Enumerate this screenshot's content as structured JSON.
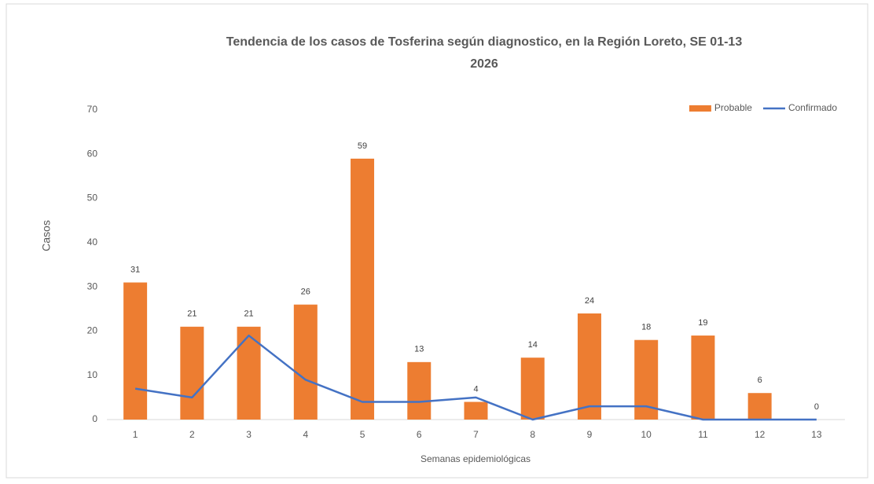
{
  "chart_data": {
    "type": "bar_line",
    "title": "Tendencia de los casos de Tosferina según diagnostico, en la Región Loreto, SE 01-13 2026",
    "x_label": "Semanas epidemiológicas",
    "y_label": "Casos",
    "categories": [
      "1",
      "2",
      "3",
      "4",
      "5",
      "6",
      "7",
      "8",
      "9",
      "10",
      "11",
      "12",
      "13"
    ],
    "series": [
      {
        "name": "Probable",
        "type": "bar",
        "color": "#ED7D31",
        "values": [
          31,
          21,
          21,
          26,
          59,
          13,
          4,
          14,
          24,
          18,
          19,
          6,
          0
        ]
      },
      {
        "name": "Confirmado",
        "type": "line",
        "color": "#4472C4",
        "values": [
          7,
          5,
          19,
          9,
          4,
          4,
          5,
          0,
          3,
          3,
          0,
          0,
          0
        ]
      }
    ],
    "ylim": [
      0,
      70
    ],
    "yticks": [
      0,
      10,
      20,
      30,
      40,
      50,
      60,
      70
    ],
    "grid": false,
    "legend": "top-right"
  }
}
